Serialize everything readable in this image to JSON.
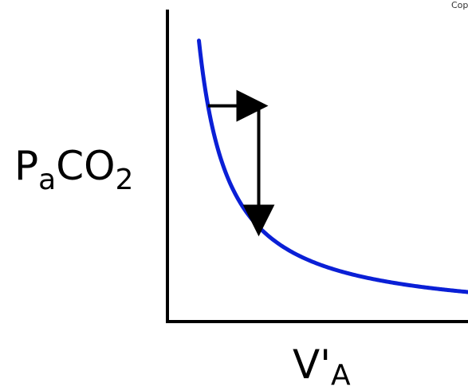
{
  "corner_text": "Cop",
  "chart_data": {
    "type": "line",
    "title": "",
    "ylabel_main_1": "P",
    "ylabel_sub_1": "a",
    "ylabel_main_2": "CO",
    "ylabel_sub_2": "2",
    "xlabel_main": "V'",
    "xlabel_sub": "A",
    "grid": false,
    "legend": "none",
    "curve_color": "#0a1fd6",
    "axis_color": "#000000",
    "arrow_color": "#000000",
    "xlim": [
      0,
      10
    ],
    "ylim": [
      0,
      10
    ],
    "curve": {
      "relation": "inverse",
      "k": 9,
      "x_start": 1.0,
      "x_end": 10
    },
    "arrows": [
      {
        "from": [
          1.3,
          6.9
        ],
        "to": [
          3.0,
          6.9
        ]
      },
      {
        "from": [
          3.0,
          6.9
        ],
        "to": [
          3.0,
          3.0
        ]
      }
    ]
  }
}
